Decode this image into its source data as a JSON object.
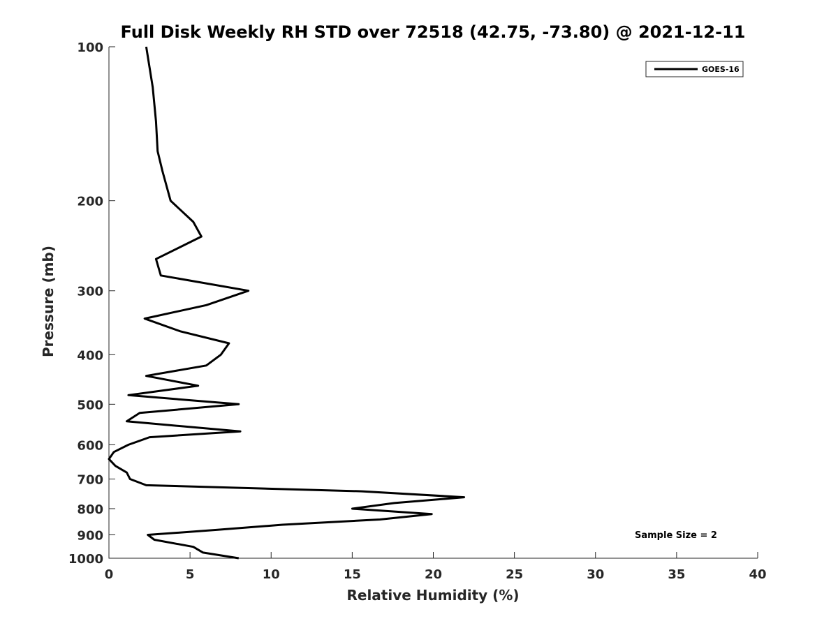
{
  "chart_data": {
    "type": "line",
    "title": "Full Disk Weekly RH STD over 72518 (42.75, -73.80) @ 2021-12-11",
    "xlabel": "Relative Humidity (%)",
    "ylabel": "Pressure (mb)",
    "xlim": [
      0,
      40
    ],
    "ylim": [
      100,
      1000
    ],
    "yscale": "log",
    "yreversed": true,
    "xticks": [
      0,
      5,
      10,
      15,
      20,
      25,
      30,
      35,
      40
    ],
    "xtick_labels": [
      "0",
      "5",
      "10",
      "15",
      "20",
      "25",
      "30",
      "35",
      "40"
    ],
    "yticks": [
      100,
      200,
      300,
      400,
      500,
      600,
      700,
      800,
      900,
      1000
    ],
    "ytick_labels": [
      "100",
      "200",
      "300",
      "400",
      "500",
      "600",
      "700",
      "800",
      "900",
      "1000"
    ],
    "grid": false,
    "legend_position": "top-right",
    "annotation": "Sample Size = 2",
    "series": [
      {
        "name": "GOES-16",
        "color": "#000000",
        "x": [
          2.3,
          2.7,
          2.9,
          3.0,
          3.3,
          3.8,
          5.2,
          5.7,
          2.9,
          3.2,
          8.6,
          6.0,
          2.2,
          4.4,
          7.4,
          6.9,
          6.0,
          2.3,
          5.5,
          1.2,
          8.0,
          1.9,
          1.1,
          8.1,
          2.5,
          1.2,
          0.3,
          0.0,
          0.4,
          1.1,
          1.3,
          2.3,
          15.6,
          21.9,
          17.6,
          15.0,
          19.9,
          16.7,
          10.7,
          6.7,
          2.4,
          2.8,
          5.2,
          5.8,
          8.0
        ],
        "y": [
          100,
          120,
          140,
          160,
          175,
          200,
          220,
          235,
          260,
          280,
          300,
          320,
          340,
          360,
          380,
          400,
          420,
          440,
          460,
          480,
          500,
          520,
          540,
          565,
          580,
          600,
          620,
          640,
          660,
          680,
          700,
          720,
          740,
          760,
          780,
          800,
          820,
          840,
          860,
          880,
          900,
          920,
          950,
          975,
          1000
        ]
      }
    ]
  }
}
